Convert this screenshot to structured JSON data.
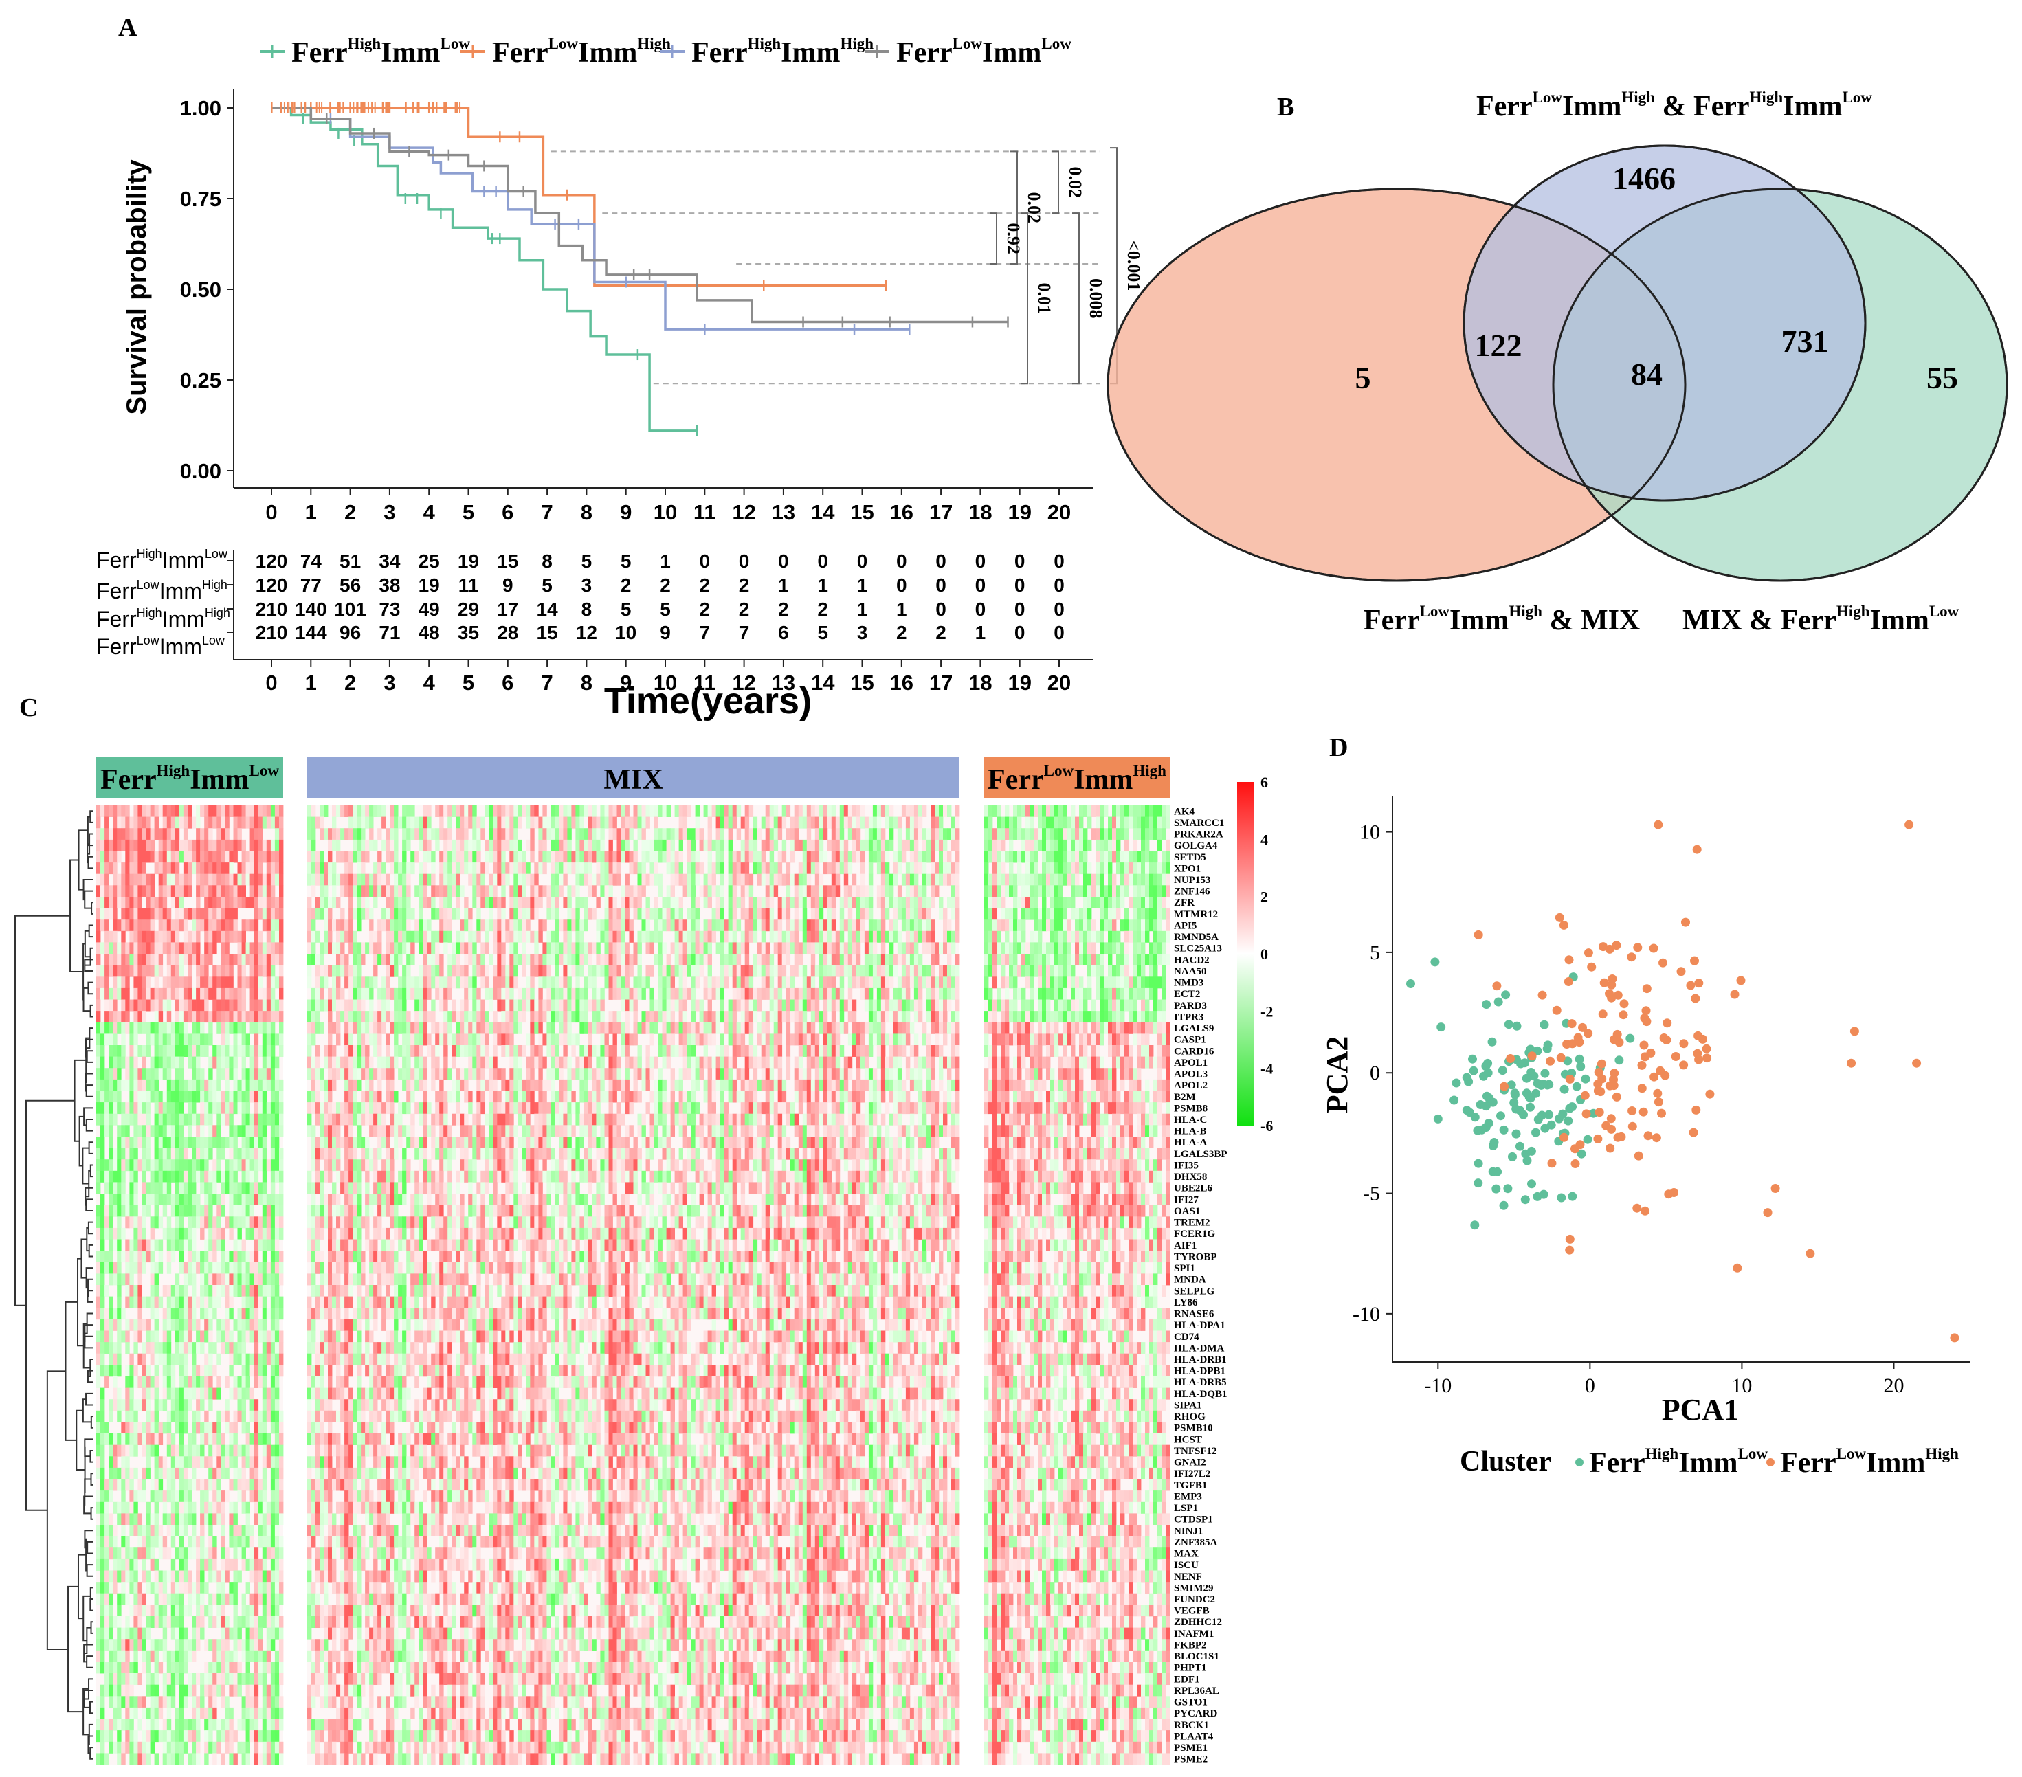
{
  "colors": {
    "high_low": "#5fbf9a",
    "low_high": "#ef8a57",
    "high_high": "#8d9fd1",
    "low_low": "#8c8c8c",
    "venn_left": "#f7b49c",
    "venn_top": "#b3bfe0",
    "venn_right": "#a8dbc6",
    "heat_high": "#ff2020",
    "heat_low": "#20d020",
    "mix_bar": "#93a6d6"
  },
  "chart_data": [
    {
      "panel": "A",
      "type": "line",
      "subtype": "kaplan-meier",
      "ylabel": "Survival probability",
      "xlabel": "Time(years)",
      "xlim": [
        0,
        20
      ],
      "ylim": [
        0,
        1
      ],
      "yticks": [
        "0.00",
        "0.25",
        "0.50",
        "0.75",
        "1.00"
      ],
      "xticks": [
        "0",
        "1",
        "2",
        "3",
        "4",
        "5",
        "6",
        "7",
        "8",
        "9",
        "10",
        "11",
        "12",
        "13",
        "14",
        "15",
        "16",
        "17",
        "18",
        "19",
        "20"
      ],
      "legend": [
        {
          "base1": "Ferr",
          "sup1": "High",
          "base2": "Imm",
          "sup2": "Low",
          "key": "high_low"
        },
        {
          "base1": "Ferr",
          "sup1": "Low",
          "base2": "Imm",
          "sup2": "High",
          "key": "low_high"
        },
        {
          "base1": "Ferr",
          "sup1": "High",
          "base2": "Imm",
          "sup2": "High",
          "key": "high_high"
        },
        {
          "base1": "Ferr",
          "sup1": "Low",
          "base2": "Imm",
          "sup2": "Low",
          "key": "low_low"
        }
      ],
      "series": [
        {
          "key": "high_low",
          "steps": [
            [
              0,
              1.0
            ],
            [
              0.5,
              0.98
            ],
            [
              1,
              0.96
            ],
            [
              1.5,
              0.94
            ],
            [
              2.3,
              0.9
            ],
            [
              2.7,
              0.84
            ],
            [
              3.2,
              0.76
            ],
            [
              4,
              0.72
            ],
            [
              4.6,
              0.67
            ],
            [
              5.5,
              0.64
            ],
            [
              6.3,
              0.58
            ],
            [
              6.9,
              0.5
            ],
            [
              7.5,
              0.44
            ],
            [
              8.1,
              0.37
            ],
            [
              8.5,
              0.32
            ],
            [
              9.6,
              0.11
            ],
            [
              10.8,
              0.11
            ]
          ],
          "censor": [
            [
              0.8,
              0.97
            ],
            [
              1.7,
              0.93
            ],
            [
              2.1,
              0.91
            ],
            [
              3.4,
              0.75
            ],
            [
              3.7,
              0.75
            ],
            [
              4.3,
              0.71
            ],
            [
              5.6,
              0.64
            ],
            [
              5.8,
              0.64
            ],
            [
              9.3,
              0.32
            ],
            [
              10.8,
              0.11
            ]
          ]
        },
        {
          "key": "low_high",
          "steps": [
            [
              0,
              1.0
            ],
            [
              5,
              1.0
            ],
            [
              5,
              0.92
            ],
            [
              6.9,
              0.92
            ],
            [
              6.9,
              0.76
            ],
            [
              8.2,
              0.76
            ],
            [
              8.2,
              0.51
            ],
            [
              15.6,
              0.51
            ]
          ],
          "censor": [
            [
              1,
              1.0
            ],
            [
              2,
              1.0
            ],
            [
              3,
              1.0
            ],
            [
              4,
              1.0
            ],
            [
              5.8,
              0.92
            ],
            [
              6.3,
              0.92
            ],
            [
              7.5,
              0.76
            ],
            [
              12.5,
              0.51
            ],
            [
              15.6,
              0.51
            ]
          ]
        },
        {
          "key": "high_high",
          "steps": [
            [
              0,
              1.0
            ],
            [
              1,
              0.97
            ],
            [
              2,
              0.92
            ],
            [
              3,
              0.89
            ],
            [
              4.1,
              0.85
            ],
            [
              4.3,
              0.82
            ],
            [
              5.1,
              0.77
            ],
            [
              6,
              0.72
            ],
            [
              6.6,
              0.68
            ],
            [
              8,
              0.68
            ],
            [
              8.2,
              0.52
            ],
            [
              10,
              0.52
            ],
            [
              10,
              0.39
            ],
            [
              16.2,
              0.39
            ]
          ],
          "censor": [
            [
              1.5,
              0.97
            ],
            [
              3.5,
              0.88
            ],
            [
              5.4,
              0.77
            ],
            [
              5.7,
              0.77
            ],
            [
              7.2,
              0.68
            ],
            [
              7.8,
              0.68
            ],
            [
              9,
              0.52
            ],
            [
              11,
              0.39
            ],
            [
              14.8,
              0.39
            ],
            [
              16.2,
              0.39
            ]
          ]
        },
        {
          "key": "low_low",
          "steps": [
            [
              0,
              1.0
            ],
            [
              1,
              0.97
            ],
            [
              2,
              0.93
            ],
            [
              3,
              0.88
            ],
            [
              4,
              0.87
            ],
            [
              5,
              0.84
            ],
            [
              6,
              0.77
            ],
            [
              6.7,
              0.71
            ],
            [
              7.3,
              0.62
            ],
            [
              7.9,
              0.58
            ],
            [
              8.5,
              0.54
            ],
            [
              10,
              0.54
            ],
            [
              10.8,
              0.47
            ],
            [
              12,
              0.47
            ],
            [
              12.2,
              0.41
            ],
            [
              18.7,
              0.41
            ]
          ],
          "censor": [
            [
              1.4,
              0.97
            ],
            [
              2.6,
              0.93
            ],
            [
              3.5,
              0.88
            ],
            [
              4.5,
              0.87
            ],
            [
              5.4,
              0.84
            ],
            [
              6.4,
              0.77
            ],
            [
              9.2,
              0.54
            ],
            [
              9.6,
              0.54
            ],
            [
              13.5,
              0.41
            ],
            [
              14.5,
              0.41
            ],
            [
              15.7,
              0.41
            ],
            [
              17.8,
              0.41
            ],
            [
              18.7,
              0.41
            ]
          ]
        }
      ],
      "pvalues": [
        {
          "label": "0.02",
          "ys": [
            0.88,
            0.57
          ],
          "level": 0
        },
        {
          "label": "0.92",
          "ys": [
            0.71,
            0.57
          ],
          "level": 0
        },
        {
          "label": "0.01",
          "ys": [
            0.71,
            0.24
          ],
          "level": 0
        },
        {
          "label": "0.02",
          "ys": [
            0.88,
            0.71
          ],
          "level": 1
        },
        {
          "label": "0.008",
          "ys": [
            0.71,
            0.24
          ],
          "level": 1
        },
        {
          "label": "<0.001",
          "ys": [
            0.89,
            0.24
          ],
          "level": 2
        }
      ],
      "risk_table": {
        "rows": [
          {
            "base1": "Ferr",
            "sup1": "High",
            "base2": "Imm",
            "sup2": "Low",
            "values": [
              120,
              74,
              51,
              34,
              25,
              19,
              15,
              8,
              5,
              5,
              1,
              0,
              0,
              0,
              0,
              0,
              0,
              0,
              0,
              0,
              0
            ]
          },
          {
            "base1": "Ferr",
            "sup1": "Low",
            "base2": "Imm",
            "sup2": "High",
            "values": [
              120,
              77,
              56,
              38,
              19,
              11,
              9,
              5,
              3,
              2,
              2,
              2,
              2,
              1,
              1,
              1,
              0,
              0,
              0,
              0,
              0
            ]
          },
          {
            "base1": "Ferr",
            "sup1": "High",
            "base2": "Imm",
            "sup2": "High",
            "values": [
              210,
              140,
              101,
              73,
              49,
              29,
              17,
              14,
              8,
              5,
              5,
              2,
              2,
              2,
              2,
              1,
              1,
              0,
              0,
              0,
              0
            ]
          },
          {
            "base1": "Ferr",
            "sup1": "Low",
            "base2": "Imm",
            "sup2": "Low",
            "values": [
              210,
              144,
              96,
              71,
              48,
              35,
              28,
              15,
              12,
              10,
              9,
              7,
              7,
              6,
              5,
              3,
              2,
              2,
              1,
              0,
              0
            ]
          }
        ]
      }
    },
    {
      "panel": "B",
      "type": "venn",
      "sets": [
        {
          "key": "left",
          "base1": "Ferr",
          "sup1": "Low",
          "base2": "Imm",
          "sup2": "High",
          "suffix": " & MIX"
        },
        {
          "key": "top",
          "base1": "Ferr",
          "sup1": "Low",
          "base2": "Imm",
          "sup2": "High",
          "mid": " & ",
          "base3": "Ferr",
          "sup3": "High",
          "base4": "Imm",
          "sup4": "Low"
        },
        {
          "key": "right",
          "prefix": "MIX  & ",
          "base1": "Ferr",
          "sup1": "High",
          "base2": "Imm",
          "sup2": "Low"
        }
      ],
      "regions": {
        "left_only": 5,
        "top_only": 1466,
        "right_only": 55,
        "left_top": 122,
        "top_right": 731,
        "all": 84
      }
    },
    {
      "panel": "C",
      "type": "heatmap",
      "groups": [
        {
          "key": "high_low",
          "base1": "Ferr",
          "sup1": "High",
          "base2": "Imm",
          "sup2": "Low"
        },
        {
          "key": "mix",
          "label": "MIX"
        },
        {
          "key": "low_high",
          "base1": "Ferr",
          "sup1": "Low",
          "base2": "Imm",
          "sup2": "High"
        }
      ],
      "scale_ticks": [
        "6",
        "4",
        "2",
        "0",
        "-2",
        "-4",
        "-6"
      ],
      "scale_range": [
        -6,
        6
      ],
      "genes": [
        "AK4",
        "SMARCC1",
        "PRKAR2A",
        "GOLGA4",
        "SETD5",
        "XPO1",
        "NUP153",
        "ZNF146",
        "ZFR",
        "MTMR12",
        "API5",
        "RMND5A",
        "SLC25A13",
        "HACD2",
        "NAA50",
        "NMD3",
        "ECT2",
        "PARD3",
        "ITPR3",
        "LGALS9",
        "CASP1",
        "CARD16",
        "APOL1",
        "APOL3",
        "APOL2",
        "B2M",
        "PSMB8",
        "HLA-C",
        "HLA-B",
        "HLA-A",
        "LGALS3BP",
        "IFI35",
        "DHX58",
        "UBE2L6",
        "IFI27",
        "OAS1",
        "TREM2",
        "FCER1G",
        "AIF1",
        "TYROBP",
        "SPI1",
        "MNDA",
        "SELPLG",
        "LY86",
        "RNASE6",
        "HLA-DPA1",
        "CD74",
        "HLA-DMA",
        "HLA-DRB1",
        "HLA-DPB1",
        "HLA-DRB5",
        "HLA-DQB1",
        "SIPA1",
        "RHOG",
        "PSMB10",
        "HCST",
        "TNFSF12",
        "GNAI2",
        "IFI27L2",
        "TGFB1",
        "EMP3",
        "LSP1",
        "CTDSP1",
        "NINJ1",
        "ZNF385A",
        "MAX",
        "ISCU",
        "NENF",
        "SMIM29",
        "FUNDC2",
        "VEGFB",
        "ZDHHC12",
        "INAFM1",
        "FKBP2",
        "BLOC1S1",
        "PHPT1",
        "EDF1",
        "RPL36AL",
        "GSTO1",
        "PYCARD",
        "RBCK1",
        "PLAAT4",
        "PSME1",
        "PSME2"
      ]
    },
    {
      "panel": "D",
      "type": "scatter",
      "xlabel": "PCA1",
      "ylabel": "PCA2",
      "xlim": [
        -13,
        25
      ],
      "ylim": [
        -12,
        11.5
      ],
      "xticks": [
        "-10",
        "0",
        "10",
        "20"
      ],
      "yticks": [
        "10",
        "5",
        "0",
        "-5",
        "-10"
      ],
      "legend_title": "Cluster",
      "legend": [
        {
          "base1": "Ferr",
          "sup1": "High",
          "base2": "Imm",
          "sup2": "Low",
          "key": "high_low"
        },
        {
          "base1": "Ferr",
          "sup1": "Low",
          "base2": "Imm",
          "sup2": "High",
          "key": "low_high"
        }
      ],
      "n_per_cluster": 120
    }
  ],
  "panel_labels": [
    "A",
    "B",
    "C",
    "D"
  ]
}
